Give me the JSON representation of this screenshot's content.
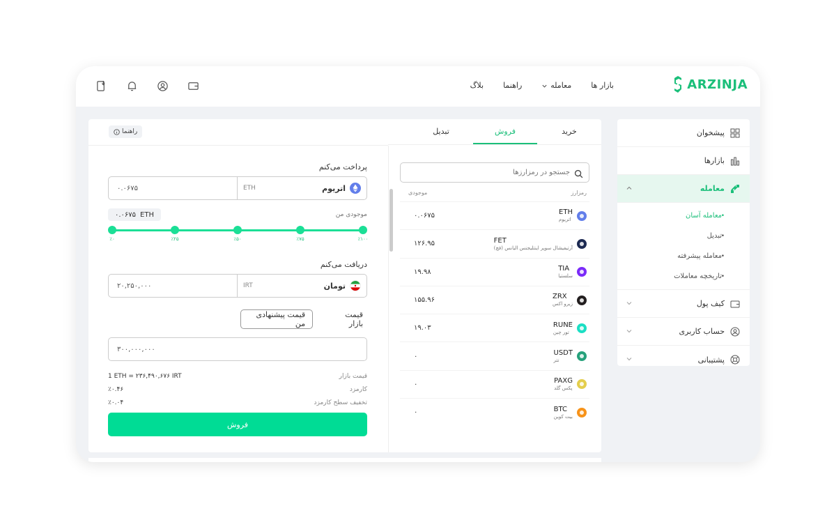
{
  "brand": {
    "name": "ARZINJA",
    "color": "#1bbf7a"
  },
  "nav": [
    {
      "label": "بازار ها",
      "has_chevron": false
    },
    {
      "label": "معامله",
      "has_chevron": true
    },
    {
      "label": "راهنما",
      "has_chevron": false
    },
    {
      "label": "بلاگ",
      "has_chevron": false
    }
  ],
  "top_icons": [
    "wallet-icon",
    "user-circle-icon",
    "bell-icon",
    "download-app-icon"
  ],
  "sidebar": {
    "items": [
      {
        "label": "پیشخوان",
        "icon": "dashboard-icon"
      },
      {
        "label": "بازارها",
        "icon": "chart-bars-icon"
      },
      {
        "label": "معامله",
        "icon": "exchange-icon"
      }
    ],
    "sub_items": [
      {
        "label": "معامله آسان",
        "active": true
      },
      {
        "label": "تبدیل",
        "active": false
      },
      {
        "label": "معامله پیشرفته",
        "active": false
      },
      {
        "label": "تاریخچه معاملات",
        "active": false
      }
    ],
    "bottom_items": [
      {
        "label": "کیف پول",
        "icon": "wallet-icon"
      },
      {
        "label": "حساب کاربری",
        "icon": "user-circle-icon"
      },
      {
        "label": "پشتیبانی",
        "icon": "support-icon"
      }
    ]
  },
  "tabs": [
    {
      "label": "خرید",
      "active": false
    },
    {
      "label": "فروش",
      "active": true
    },
    {
      "label": "تبدیل",
      "active": false
    }
  ],
  "guide_button": "راهنما",
  "form": {
    "pay_label": "پرداخت می‌کنم",
    "pay_currency": {
      "name": "اتریوم",
      "symbol": "ETH",
      "color": "#627eea"
    },
    "pay_value": "۰.۰۶۷۵",
    "balance_label": "موجودی من",
    "balance_value": "۰.۰۶۷۵",
    "balance_symbol": "ETH",
    "slider_ticks": [
      "٪۰",
      "٪۲۵",
      "٪۵۰",
      "٪۷۵",
      "٪۱۰۰"
    ],
    "slider_fraction": 1.0,
    "receive_label": "دریافت می‌کنم",
    "receive_currency": {
      "name": "تومان",
      "symbol": "IRT"
    },
    "receive_value": "۲۰,۲۵۰,۰۰۰",
    "price_market": "قیمت بازار",
    "price_offer": "قیمت پیشنهادی من",
    "price_value": "۳۰۰,۰۰۰,۰۰۰",
    "info": [
      {
        "key": "قیمت بازار",
        "value": "1 ETH = ۲۳۶,۴۹۰,۶۷۶ IRT"
      },
      {
        "key": "کارمزد",
        "value": "٪۰.۴۶"
      },
      {
        "key": "تخفیف سطح کارمزد",
        "value": "٪۰.۰۴"
      }
    ],
    "submit": "فروش"
  },
  "market": {
    "search_placeholder": "جستجو در رمزارزها",
    "col_coin": "رمزارز",
    "col_balance": "موجودی",
    "rows": [
      {
        "symbol": "ETH",
        "name": "اتریوم",
        "balance": "۰.۰۶۷۵",
        "color": "#627eea"
      },
      {
        "symbol": "FET",
        "name": "آرتیفیشال سوپر اینتلیجنس الیانس (فچ)",
        "balance": "۱۲۶.۹۵",
        "color": "#1d2a52"
      },
      {
        "symbol": "TIA",
        "name": "سلستیا",
        "balance": "۱۹.۹۸",
        "color": "#7b2bf9"
      },
      {
        "symbol": "ZRX",
        "name": "زیرو اکس",
        "balance": "۱۵۵.۹۶",
        "color": "#231f20"
      },
      {
        "symbol": "RUNE",
        "name": "تور چین",
        "balance": "۱۹.۰۳",
        "color": "#1bdfc4"
      },
      {
        "symbol": "USDT",
        "name": "تتر",
        "balance": "۰",
        "color": "#26a17b"
      },
      {
        "symbol": "PAXG",
        "name": "پکس گلد",
        "balance": "۰",
        "color": "#e4ce4d"
      },
      {
        "symbol": "BTC",
        "name": "بیت کوین",
        "balance": "۰",
        "color": "#f7931a"
      }
    ]
  }
}
